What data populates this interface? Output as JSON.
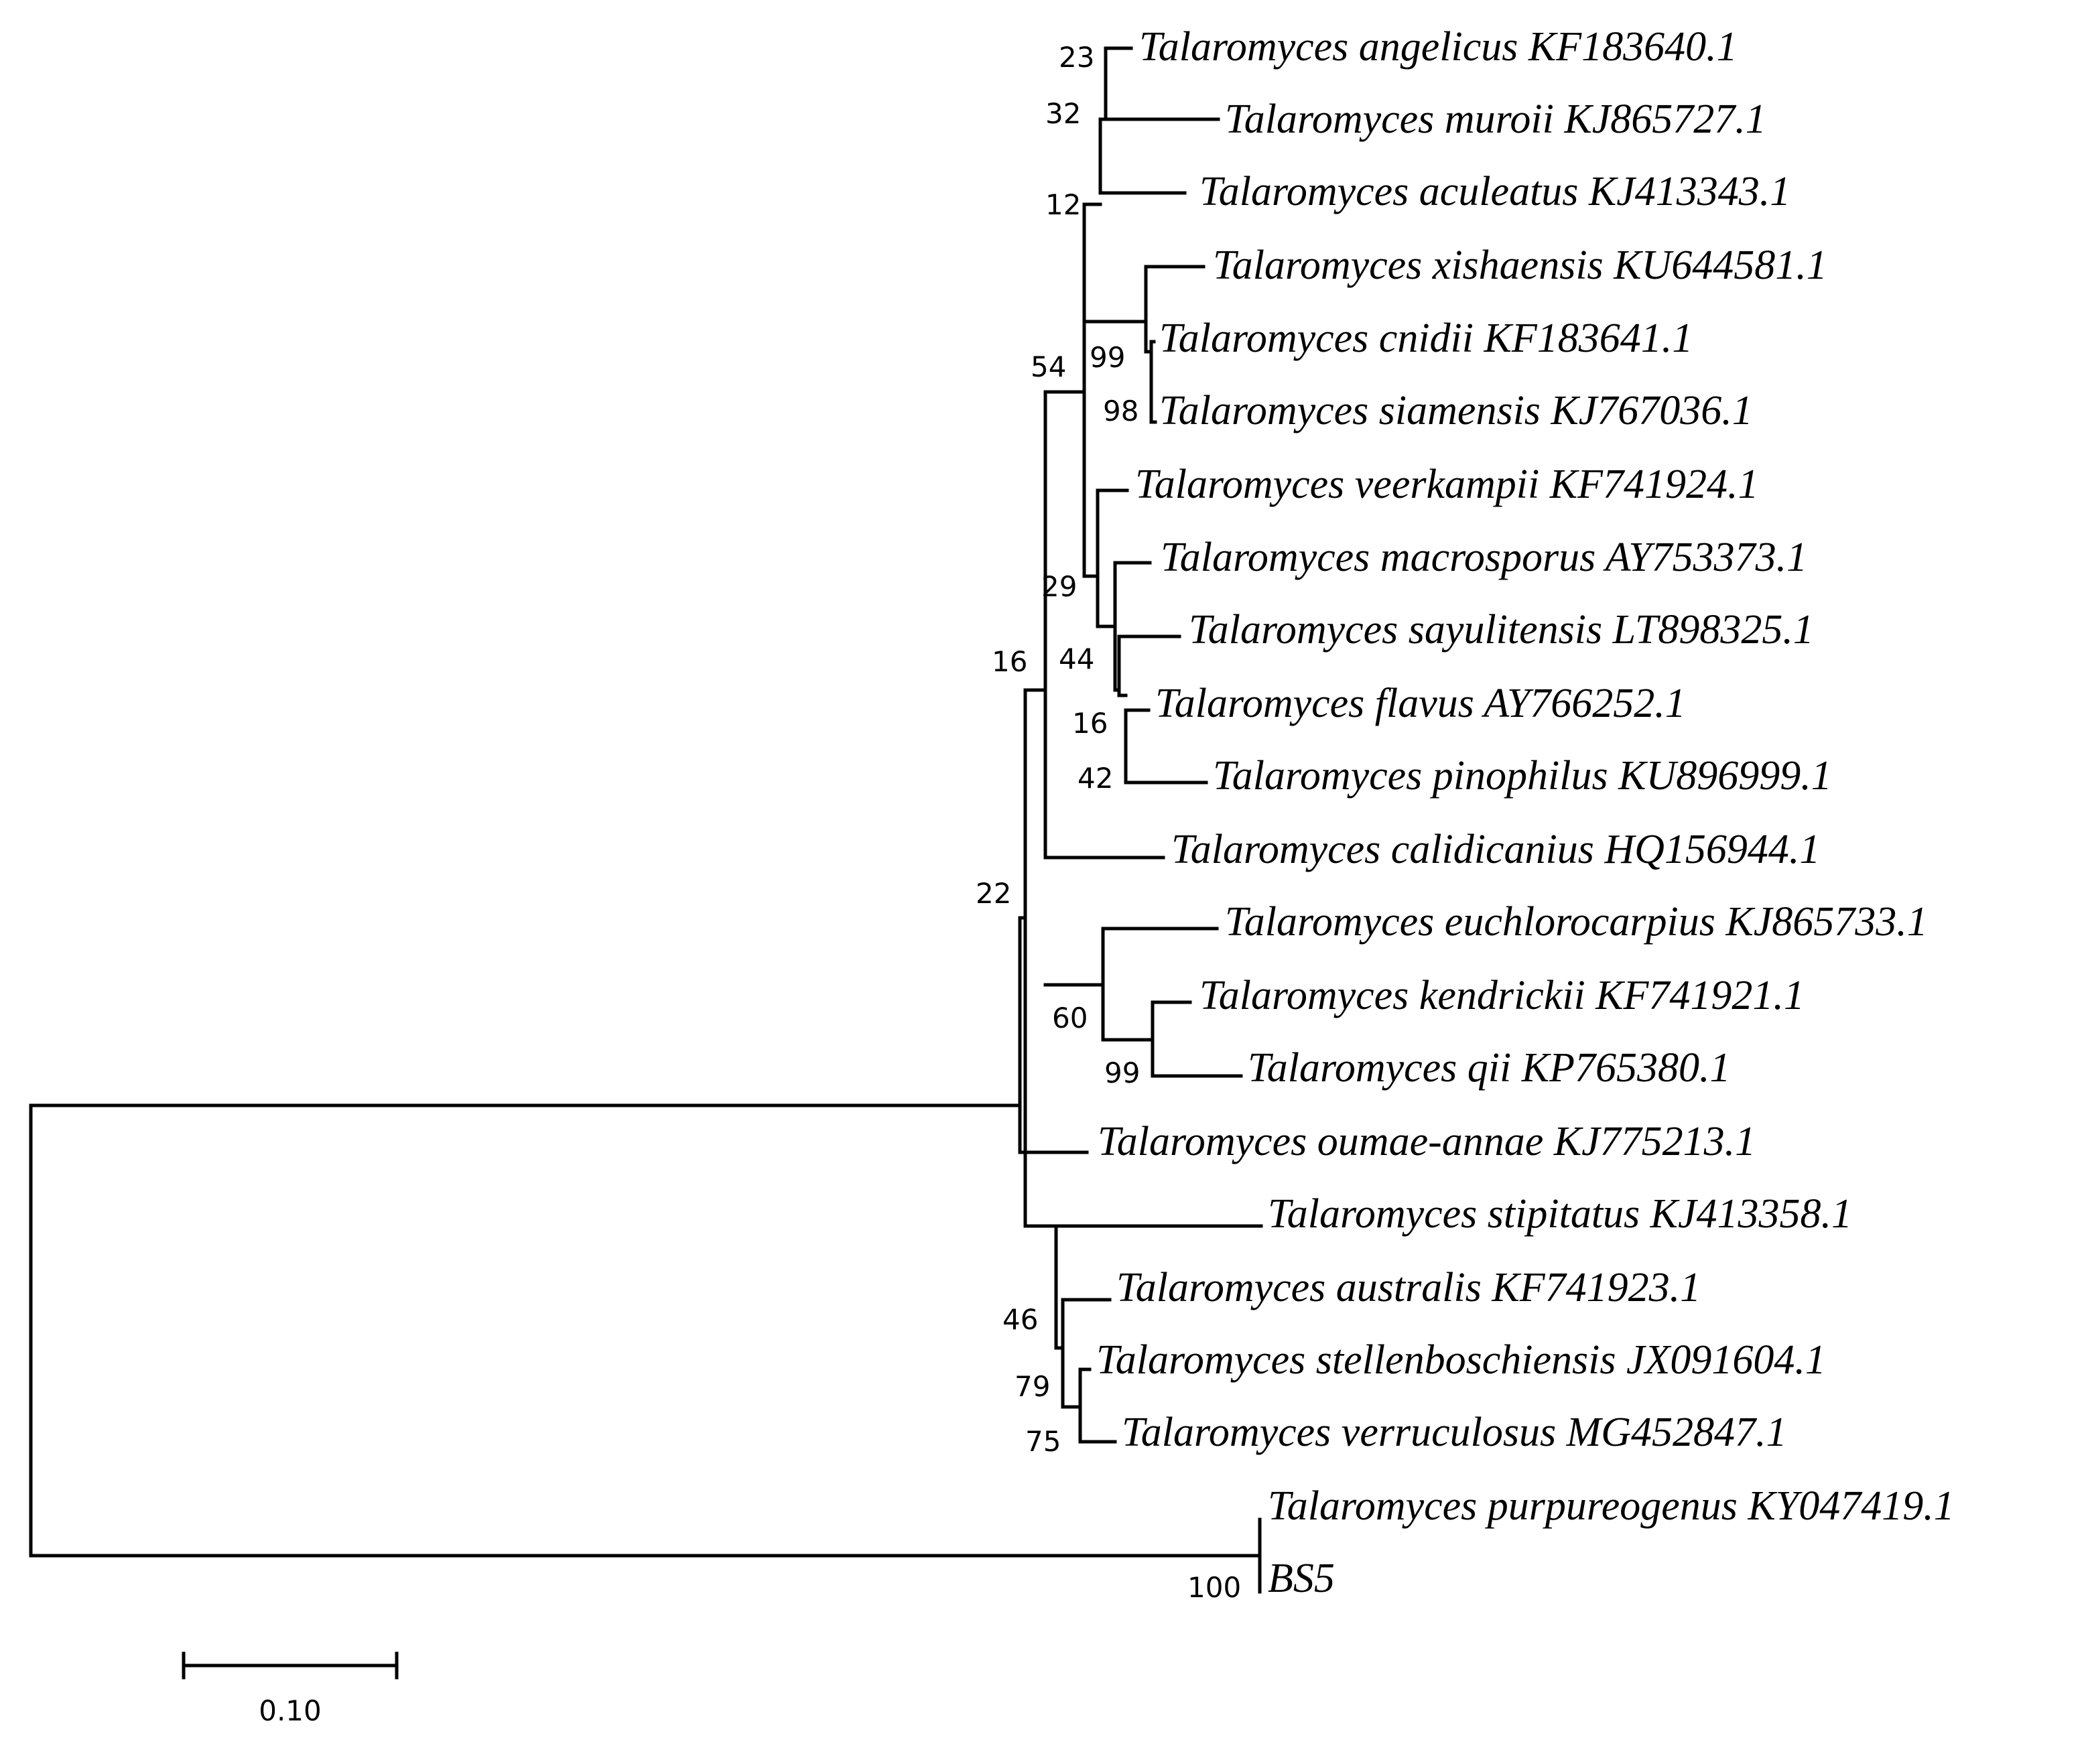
{
  "taxa": [
    "Talaromyces angelicus KF183640.1",
    "Talaromyces muroii KJ865727.1",
    "Talaromyces aculeatus KJ413343.1",
    "Talaromyces xishaensis KU644581.1",
    "Talaromyces cnidii KF183641.1",
    "Talaromyces siamensis KJ767036.1",
    "Talaromyces veerkampii KF741924.1",
    "Talaromyces macrosporus AY753373.1",
    "Talaromyces sayulitensis LT898325.1",
    "Talaromyces flavus AY766252.1",
    "Talaromyces pinophilus KU896999.1",
    "Talaromyces calidicanius HQ156944.1",
    "Talaromyces euchlorocarpius KJ865733.1",
    "Talaromyces kendrickii KF741921.1",
    "Talaromyces qii KP765380.1",
    "Talaromyces oumae-annae KJ775213.1",
    "Talaromyces stipitatus KJ413358.1",
    "Talaromyces australis KF741923.1",
    "Talaromyces stellenboschiensis JX091604.1",
    "Talaromyces verruculosus MG452847.1",
    "Talaromyces purpureogenus KY047419.1",
    "BS5"
  ],
  "bootstrap": [
    "23",
    "32",
    "12",
    "99",
    "98",
    "54",
    "29",
    "44",
    "16",
    "42",
    "16",
    "60",
    "99",
    "22",
    "46",
    "79",
    "75",
    "100"
  ],
  "scale_bar": {
    "label": "0.10",
    "value": 0.1
  }
}
